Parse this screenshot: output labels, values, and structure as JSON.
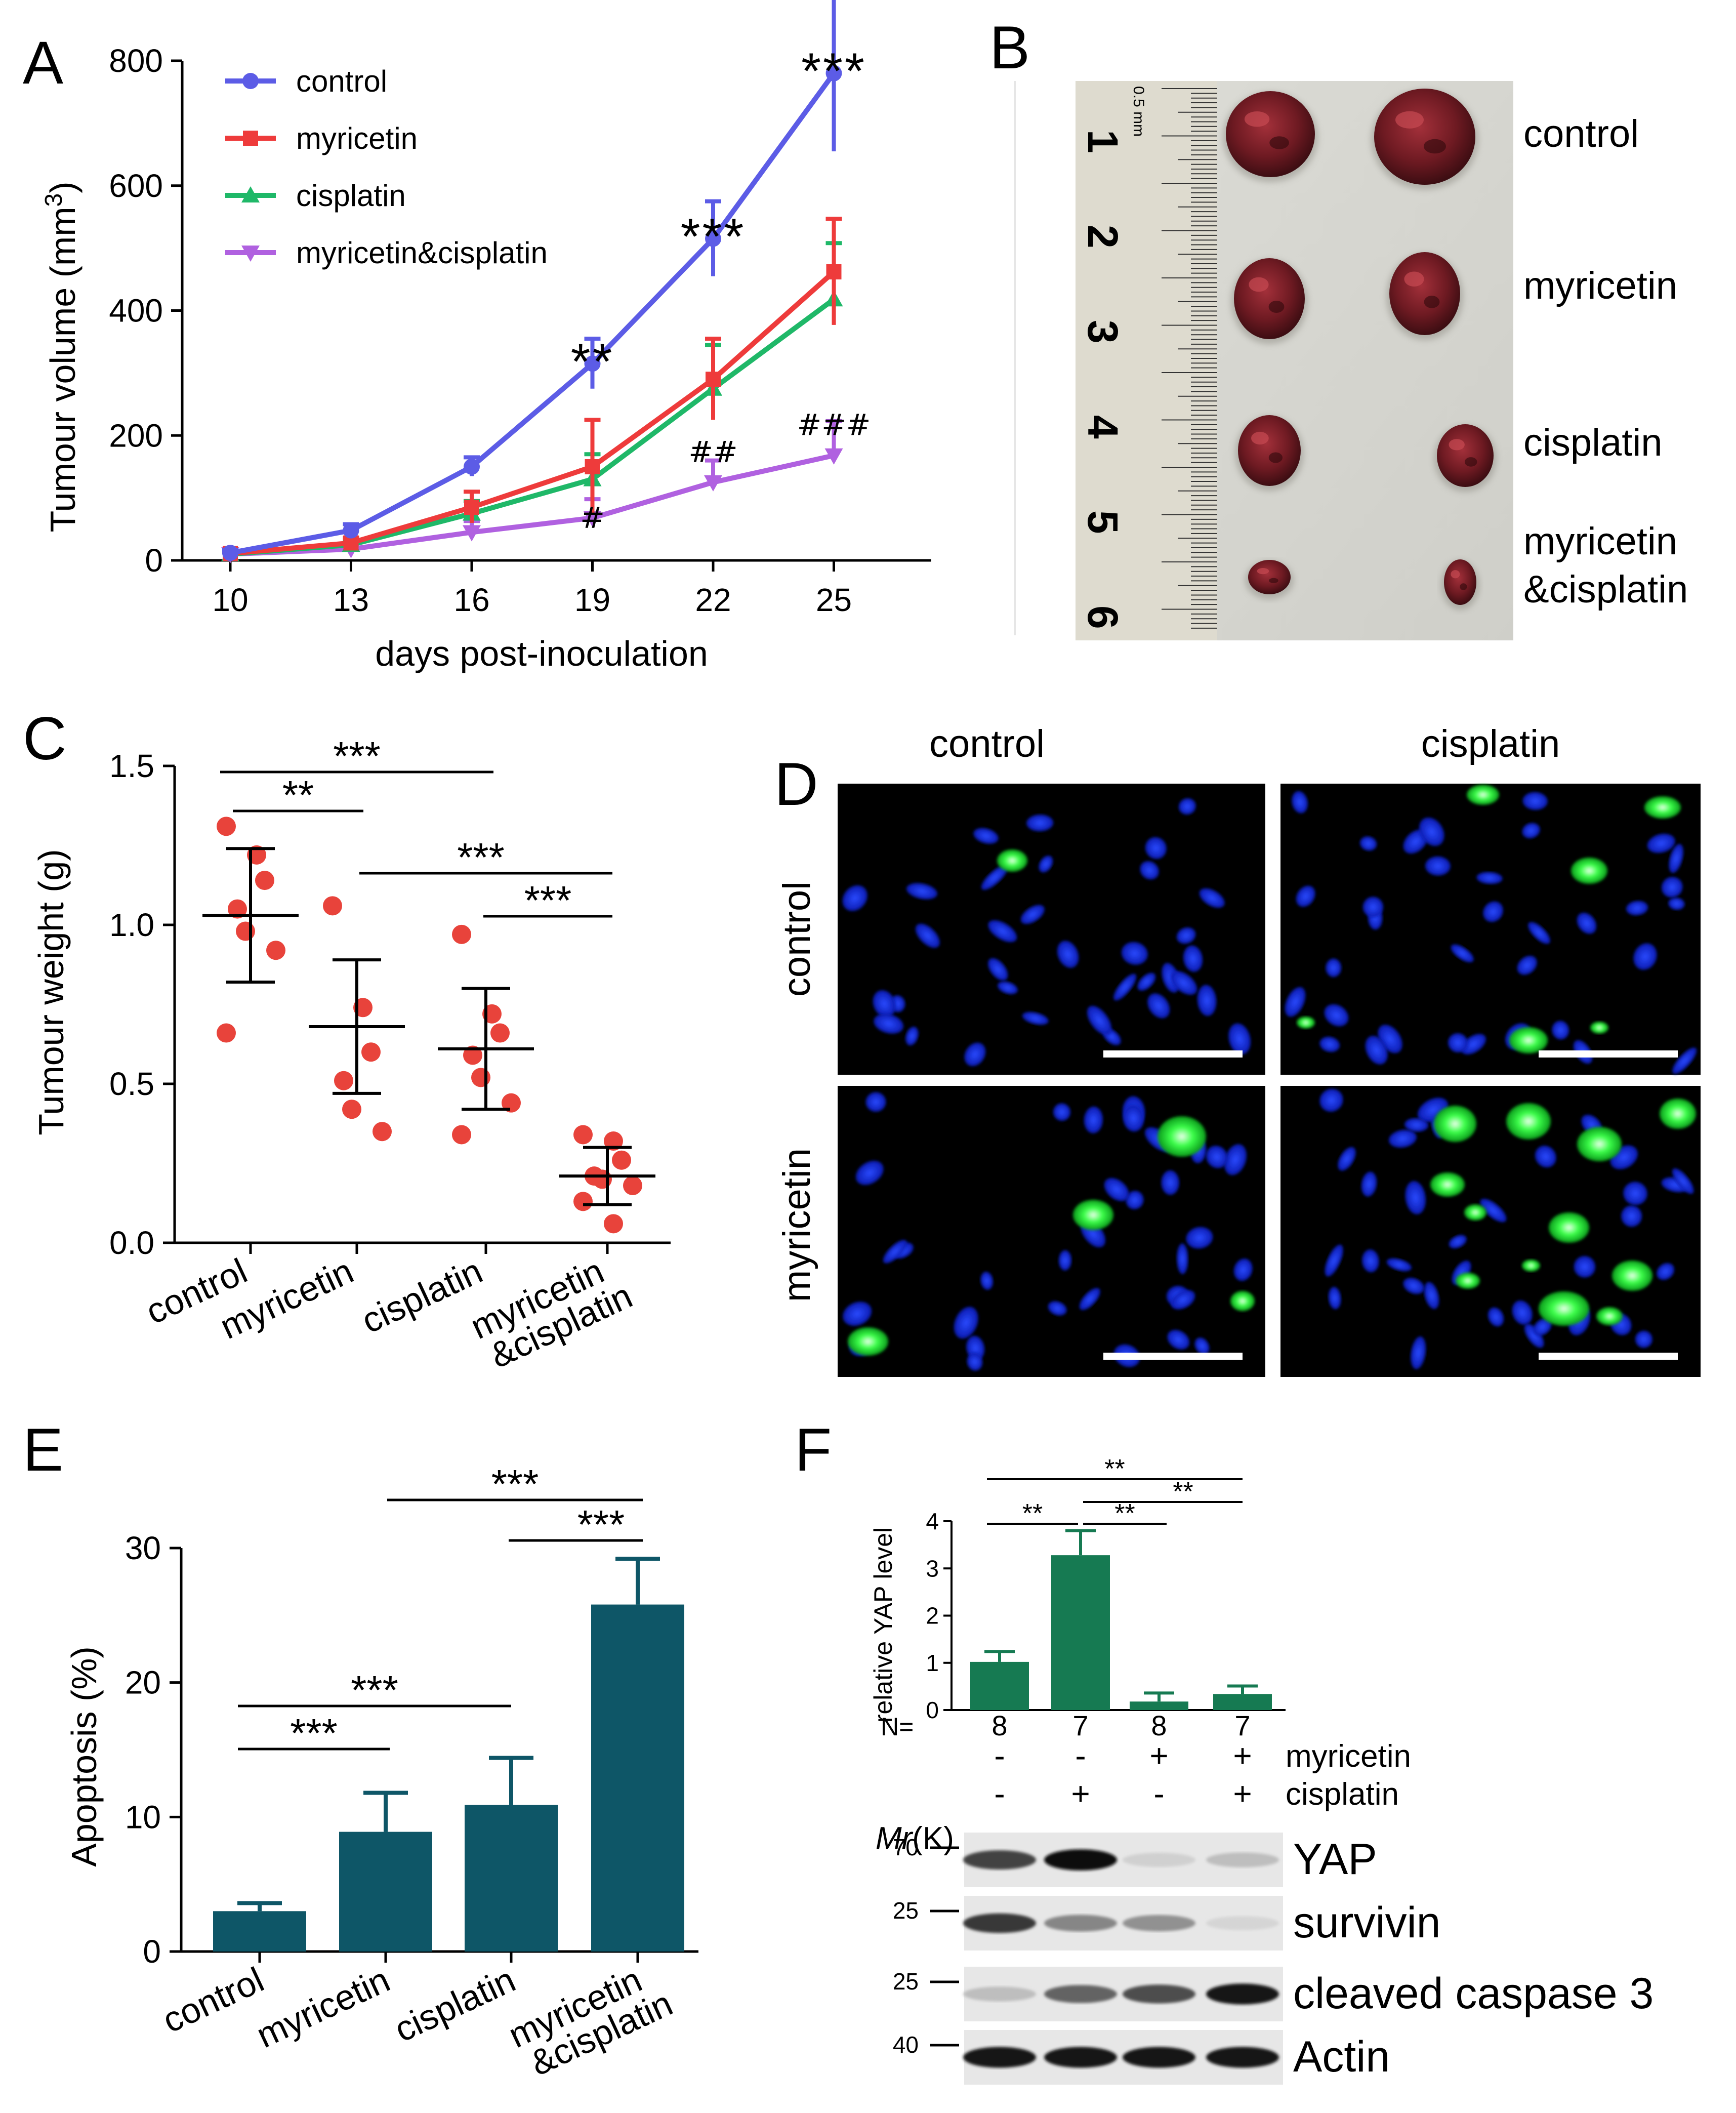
{
  "panels": {
    "A": {
      "label": "A",
      "chart_data": {
        "type": "line",
        "xlabel": "days post-inoculation",
        "ylabel": "Tumour volume (mm3)",
        "ylabel_main": "Tumour volume (mm",
        "ylabel_sup": "3",
        "ylabel_close": ")",
        "x": [
          10,
          13,
          16,
          19,
          22,
          25
        ],
        "ylim": [
          0,
          800
        ],
        "yticks": [
          0,
          200,
          400,
          600,
          800
        ],
        "legend_position": "top-left",
        "series": [
          {
            "name": "control",
            "color": "#5c5ce6",
            "marker": "circle",
            "values": [
              12,
              48,
              150,
              315,
              515,
              780
            ],
            "errors": [
              5,
              10,
              15,
              40,
              60,
              125
            ]
          },
          {
            "name": "myricetin",
            "color": "#ee3b3b",
            "marker": "square",
            "values": [
              11,
              28,
              85,
              150,
              290,
              462
            ],
            "errors": [
              4,
              8,
              25,
              75,
              65,
              85
            ]
          },
          {
            "name": "cisplatin",
            "color": "#1fb868",
            "marker": "triangle",
            "values": [
              10,
              25,
              75,
              130,
              275,
              418
            ],
            "errors": [
              4,
              7,
              20,
              40,
              70,
              90
            ]
          },
          {
            "name": "myricetin&cisplatin",
            "color": "#b061e0",
            "marker": "triangle-down",
            "values": [
              10,
              18,
              45,
              68,
              125,
              168
            ],
            "errors": [
              3,
              5,
              18,
              30,
              35,
              55
            ]
          }
        ],
        "annotations": [
          {
            "x": 19,
            "y": 315,
            "text": "**",
            "style": "star"
          },
          {
            "x": 22,
            "y": 515,
            "text": "***",
            "style": "star"
          },
          {
            "x": 25,
            "y": 780,
            "text": "***",
            "style": "star"
          },
          {
            "x": 19,
            "y": 68,
            "text": "#",
            "style": "hash"
          },
          {
            "x": 22,
            "y": 125,
            "text": "##",
            "style": "hash"
          },
          {
            "x": 25,
            "y": 168,
            "text": "###",
            "style": "hash"
          }
        ]
      }
    },
    "B": {
      "label": "B",
      "ruler_unit": "0.5 mm",
      "ruler_numbers": [
        "1",
        "2",
        "3",
        "4",
        "5",
        "6"
      ],
      "rows": [
        "control",
        "myricetin",
        "cisplatin"
      ],
      "row4_line1": "myricetin",
      "row4_line2": "&cisplatin"
    },
    "C": {
      "label": "C",
      "chart_data": {
        "type": "scatter",
        "ylabel": "Tumour weight (g)",
        "ylim": [
          0,
          1.5
        ],
        "yticks": [
          "0.0",
          "0.5",
          "1.0",
          "1.5"
        ],
        "ytick_values": [
          0,
          0.5,
          1.0,
          1.5
        ],
        "categories": [
          "control",
          "myricetin",
          "cisplatin",
          "myricetin&cisplatin"
        ],
        "category_lines": [
          [
            "control"
          ],
          [
            "myricetin"
          ],
          [
            "cisplatin"
          ],
          [
            "myricetin",
            "&cisplatin"
          ]
        ],
        "point_color": "#e8433b",
        "groups": [
          {
            "name": "control",
            "mean": 1.03,
            "sd": 0.21,
            "points": [
              1.31,
              1.22,
              1.14,
              1.05,
              0.98,
              0.92,
              0.66
            ]
          },
          {
            "name": "myricetin",
            "mean": 0.68,
            "sd": 0.21,
            "points": [
              1.06,
              0.74,
              0.6,
              0.51,
              0.42,
              0.35
            ]
          },
          {
            "name": "cisplatin",
            "mean": 0.61,
            "sd": 0.19,
            "points": [
              0.97,
              0.72,
              0.66,
              0.59,
              0.52,
              0.44,
              0.34
            ]
          },
          {
            "name": "myricetin&cisplatin",
            "mean": 0.21,
            "sd": 0.09,
            "points": [
              0.34,
              0.32,
              0.26,
              0.21,
              0.2,
              0.18,
              0.13,
              0.06
            ]
          }
        ],
        "comparisons": [
          {
            "from": 0,
            "to": 2,
            "text": "***"
          },
          {
            "from": 0,
            "to": 1,
            "text": "**"
          },
          {
            "from": 1,
            "to": 3,
            "text": "***"
          },
          {
            "from": 2,
            "to": 3,
            "text": "***"
          }
        ]
      }
    },
    "D": {
      "label": "D",
      "col_labels": [
        "control",
        "cisplatin"
      ],
      "row_labels": [
        "control",
        "myricetin"
      ]
    },
    "E": {
      "label": "E",
      "chart_data": {
        "type": "bar",
        "ylabel": "Apoptosis (%)",
        "ylim": [
          0,
          30
        ],
        "yticks": [
          0,
          10,
          20,
          30
        ],
        "categories": [
          "control",
          "myricetin",
          "cisplatin",
          "myricetin&cisplatin"
        ],
        "category_lines": [
          [
            "control"
          ],
          [
            "myricetin"
          ],
          [
            "cisplatin"
          ],
          [
            "myricetin",
            "&cisplatin"
          ]
        ],
        "color": "#0e5667",
        "values": [
          3.0,
          8.9,
          10.9,
          25.8
        ],
        "errors": [
          0.6,
          2.9,
          3.5,
          3.4
        ],
        "comparisons": [
          {
            "from": 1,
            "to": 3,
            "text": "***"
          },
          {
            "from": 2,
            "to": 3,
            "text": "***"
          },
          {
            "from": 0,
            "to": 2,
            "text": "***"
          },
          {
            "from": 0,
            "to": 1,
            "text": "***"
          }
        ]
      }
    },
    "F": {
      "label": "F",
      "chart_data": {
        "type": "bar",
        "ylabel": "relative YAP level",
        "ylim": [
          0,
          4
        ],
        "yticks": [
          0,
          1,
          2,
          3,
          4
        ],
        "color": "#167a52",
        "values": [
          1.02,
          3.28,
          0.18,
          0.34
        ],
        "errors": [
          0.22,
          0.52,
          0.18,
          0.17
        ],
        "n_label": "N=",
        "n": [
          "8",
          "7",
          "8",
          "7"
        ],
        "comparisons": [
          {
            "from": 0,
            "to": 3,
            "text": "**"
          },
          {
            "from": 1,
            "to": 3,
            "text": "**"
          },
          {
            "from": 0,
            "to": 1,
            "text": "**"
          },
          {
            "from": 1,
            "to": 2,
            "text": "**"
          }
        ]
      },
      "treatment_rows": [
        {
          "name": "myricetin",
          "signs": [
            "-",
            "-",
            "+",
            "+"
          ]
        },
        {
          "name": "cisplatin",
          "signs": [
            "-",
            "+",
            "-",
            "+"
          ]
        }
      ],
      "mr_prefix": "Mr",
      "mr_suffix": "(K)",
      "blots": [
        {
          "name": "YAP",
          "marker": "70",
          "intensities": [
            0.75,
            0.98,
            0.12,
            0.2
          ]
        },
        {
          "name": "survivin",
          "marker": "25",
          "intensities": [
            0.8,
            0.45,
            0.4,
            0.1
          ]
        },
        {
          "name": "cleaved caspase 3",
          "marker": "25",
          "intensities": [
            0.2,
            0.6,
            0.7,
            0.95
          ]
        },
        {
          "name": "Actin",
          "marker": "40",
          "intensities": [
            0.95,
            0.95,
            0.95,
            0.95
          ]
        }
      ]
    }
  }
}
